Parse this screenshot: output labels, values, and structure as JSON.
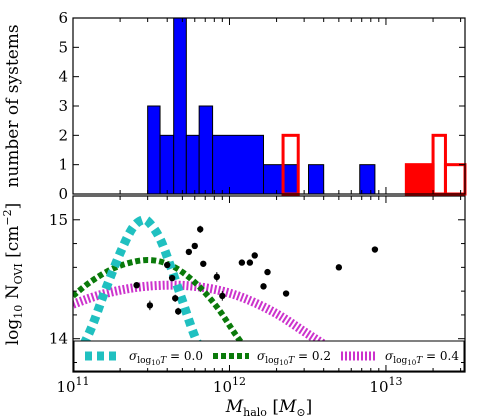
{
  "chart_data": [
    {
      "type": "bar",
      "ylabel": "number of systems",
      "xscale": "log",
      "xlim": [
        100000000000.0,
        32000000000000.0
      ],
      "ylim": [
        0,
        6
      ],
      "yticks": [
        "0",
        "1",
        "2",
        "3",
        "4",
        "5",
        "6"
      ],
      "series": [
        {
          "color": "#0000ff",
          "style": "filled-step",
          "bins": [
            {
              "x0": 300000000000.0,
              "x1": 360000000000.0,
              "value": 3
            },
            {
              "x0": 360000000000.0,
              "x1": 440000000000.0,
              "value": 2
            },
            {
              "x0": 440000000000.0,
              "x1": 530000000000.0,
              "value": 6
            },
            {
              "x0": 530000000000.0,
              "x1": 640000000000.0,
              "value": 2
            },
            {
              "x0": 640000000000.0,
              "x1": 780000000000.0,
              "value": 3
            },
            {
              "x0": 780000000000.0,
              "x1": 1650000000000.0,
              "value": 2
            },
            {
              "x0": 1650000000000.0,
              "x1": 2200000000000.0,
              "value": 1
            },
            {
              "x0": 2200000000000.0,
              "x1": 2750000000000.0,
              "value": 1
            },
            {
              "x0": 3200000000000.0,
              "x1": 4000000000000.0,
              "value": 1
            },
            {
              "x0": 6800000000000.0,
              "x1": 8500000000000.0,
              "value": 1
            }
          ]
        },
        {
          "color": "#ff0000",
          "style": "filled-and-outline",
          "bins": [
            {
              "x0": 2200000000000.0,
              "x1": 2750000000000.0,
              "value": 2
            },
            {
              "x0": 13500000000000.0,
              "x1": 20000000000000.0,
              "value": 1
            },
            {
              "x0": 20000000000000.0,
              "x1": 24000000000000.0,
              "value": 2
            },
            {
              "x0": 24000000000000.0,
              "x1": 32000000000000.0,
              "value": 1
            }
          ]
        }
      ]
    },
    {
      "type": "scatter",
      "xlabel": "M_halo [M_⊙]",
      "ylabel": "log10 N_OVI [cm^-2]",
      "xscale": "log",
      "xlim": [
        100000000000.0,
        32000000000000.0
      ],
      "ylim": [
        13.72,
        15.2
      ],
      "xticks": [
        "10",
        "10",
        "10"
      ],
      "xtick_exponents": [
        "11",
        "12",
        "13"
      ],
      "yticks": [
        "14",
        "15"
      ],
      "points": [
        {
          "x": 255000000000.0,
          "y": 14.45,
          "yerr": 0.02
        },
        {
          "x": 310000000000.0,
          "y": 14.28,
          "yerr": 0.04
        },
        {
          "x": 400000000000.0,
          "y": 14.62,
          "yerr": 0.02
        },
        {
          "x": 430000000000.0,
          "y": 14.51,
          "yerr": 0.02
        },
        {
          "x": 450000000000.0,
          "y": 14.34,
          "yerr": 0.03
        },
        {
          "x": 470000000000.0,
          "y": 14.23,
          "yerr": 0.03
        },
        {
          "x": 550000000000.0,
          "y": 14.73,
          "yerr": 0.02
        },
        {
          "x": 600000000000.0,
          "y": 14.78,
          "yerr": 0.02
        },
        {
          "x": 650000000000.0,
          "y": 14.92,
          "yerr": 0.03
        },
        {
          "x": 680000000000.0,
          "y": 14.63,
          "yerr": 0.02
        },
        {
          "x": 830000000000.0,
          "y": 14.52,
          "yerr": 0.04
        },
        {
          "x": 900000000000.0,
          "y": 14.36,
          "yerr": 0.04
        },
        {
          "x": 1200000000000.0,
          "y": 14.64,
          "yerr": 0.02
        },
        {
          "x": 1350000000000.0,
          "y": 14.64,
          "yerr": 0.02
        },
        {
          "x": 1450000000000.0,
          "y": 14.7,
          "yerr": 0.02
        },
        {
          "x": 1650000000000.0,
          "y": 14.44,
          "yerr": 0.02
        },
        {
          "x": 1750000000000.0,
          "y": 14.56,
          "yerr": 0.02
        },
        {
          "x": 2300000000000.0,
          "y": 14.38,
          "yerr": 0.02
        },
        {
          "x": 5000000000000.0,
          "y": 14.6,
          "yerr": 0.02
        },
        {
          "x": 8500000000000.0,
          "y": 14.75,
          "yerr": 0.02
        }
      ],
      "series": [
        {
          "name": "σ_log10T = 0.0",
          "color": "#20c0c0",
          "dash": "dense-thick",
          "x": [
            100000000000.0,
            130000000000.0,
            160000000000.0,
            200000000000.0,
            240000000000.0,
            280000000000.0,
            310000000000.0,
            360000000000.0,
            420000000000.0,
            500000000000.0,
            600000000000.0,
            750000000000.0
          ],
          "y": [
            13.77,
            14.08,
            14.4,
            14.72,
            14.93,
            15.0,
            14.97,
            14.84,
            14.61,
            14.32,
            14.02,
            13.74
          ]
        },
        {
          "name": "σ_log10T = 0.2",
          "color": "#0a7a0a",
          "dash": "dense-medium",
          "x": [
            100000000000.0,
            130000000000.0,
            180000000000.0,
            250000000000.0,
            320000000000.0,
            400000000000.0,
            500000000000.0,
            650000000000.0,
            850000000000.0,
            1100000000000.0,
            1400000000000.0,
            1800000000000.0
          ],
          "y": [
            14.36,
            14.48,
            14.59,
            14.65,
            14.66,
            14.63,
            14.56,
            14.43,
            14.25,
            14.03,
            13.85,
            13.72
          ]
        },
        {
          "name": "σ_log10T = 0.4",
          "color": "#cc33cc",
          "dash": "dense-thin",
          "x": [
            100000000000.0,
            150000000000.0,
            250000000000.0,
            400000000000.0,
            600000000000.0,
            900000000000.0,
            1300000000000.0,
            2000000000000.0,
            3000000000000.0,
            4500000000000.0,
            6500000000000.0,
            8500000000000.0
          ],
          "y": [
            14.29,
            14.37,
            14.43,
            14.45,
            14.44,
            14.4,
            14.33,
            14.21,
            14.06,
            13.91,
            13.77,
            13.72
          ]
        }
      ]
    }
  ]
}
